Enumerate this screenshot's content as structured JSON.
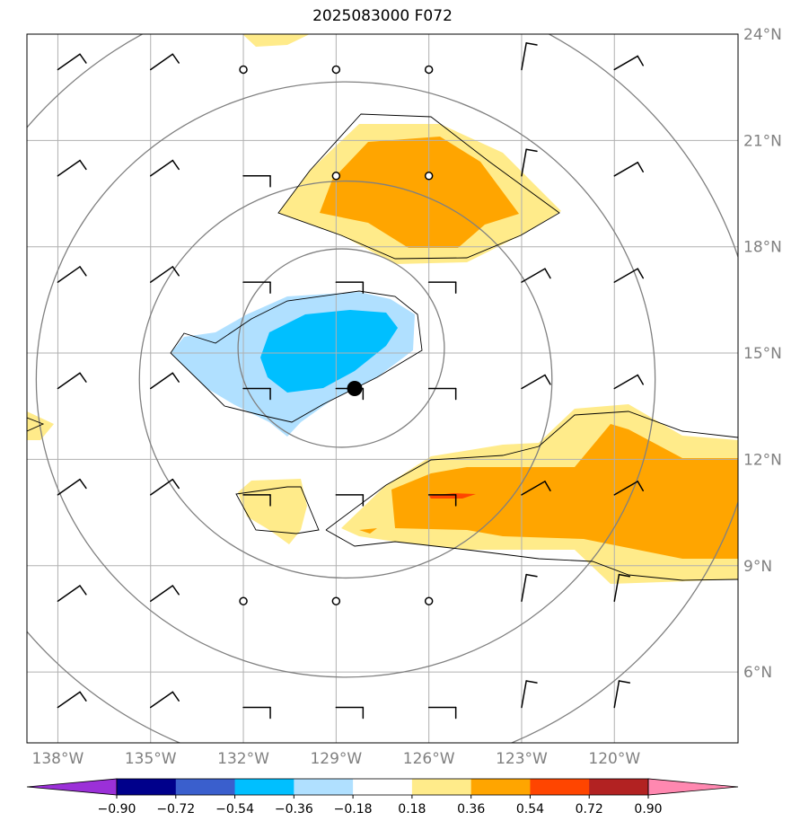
{
  "title": "2025083000 F072",
  "map": {
    "lon_range": [
      -139,
      -116
    ],
    "lat_range": [
      4,
      24
    ],
    "lon_ticks": [
      {
        "value": -138,
        "label": "138°W"
      },
      {
        "value": -135,
        "label": "135°W"
      },
      {
        "value": -132,
        "label": "132°W"
      },
      {
        "value": -129,
        "label": "129°W"
      },
      {
        "value": -126,
        "label": "126°W"
      },
      {
        "value": -123,
        "label": "123°W"
      },
      {
        "value": -120,
        "label": "120°W"
      }
    ],
    "lat_ticks": [
      {
        "value": 24,
        "label": "24°N"
      },
      {
        "value": 21,
        "label": "21°N"
      },
      {
        "value": 18,
        "label": "18°N"
      },
      {
        "value": 15,
        "label": "15°N"
      },
      {
        "value": 12,
        "label": "12°N"
      },
      {
        "value": 9,
        "label": "9°N"
      },
      {
        "value": 6,
        "label": "6°N"
      }
    ],
    "storm_center": {
      "lon": -128.4,
      "lat": 14.0
    },
    "colors": {
      "grid": "#b0b0b0",
      "range_rings": "#808080",
      "contour": "#000000",
      "storm_marker": "#000000"
    }
  },
  "colorbar": {
    "levels": [
      "−0.90",
      "−0.72",
      "−0.54",
      "−0.36",
      "−0.18",
      "0.18",
      "0.36",
      "0.54",
      "0.72",
      "0.90"
    ],
    "colors": [
      "#9b30d8",
      "#00008b",
      "#3a5fcd",
      "#00bfff",
      "#b0e0ff",
      "#ffffff",
      "#ffeb8a",
      "#ffa500",
      "#ff4500",
      "#b22222",
      "#ff88b0"
    ]
  }
}
